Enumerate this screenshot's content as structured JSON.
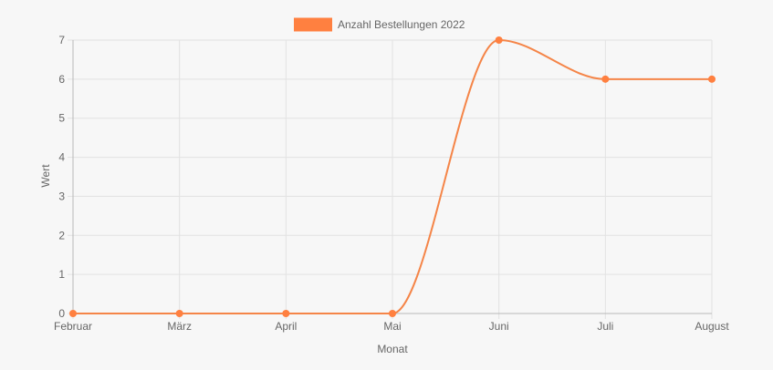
{
  "chart_data": {
    "type": "line",
    "categories": [
      "Februar",
      "März",
      "April",
      "Mai",
      "Juni",
      "Juli",
      "August"
    ],
    "series": [
      {
        "name": "Anzahl Bestellungen 2022",
        "values": [
          0,
          0,
          0,
          0,
          7,
          6,
          6
        ]
      }
    ],
    "xlabel": "Monat",
    "ylabel": "Wert",
    "ylim": [
      0,
      7
    ],
    "yticks": [
      "0",
      "1",
      "2",
      "3",
      "4",
      "5",
      "6",
      "7"
    ],
    "grid": true,
    "legend": "top-center",
    "series_color": "#ff8040",
    "line_color": "#f58548",
    "grid_color": "#e2e2e2",
    "axis_color": "#b8b8b8",
    "text_color": "#666666"
  }
}
